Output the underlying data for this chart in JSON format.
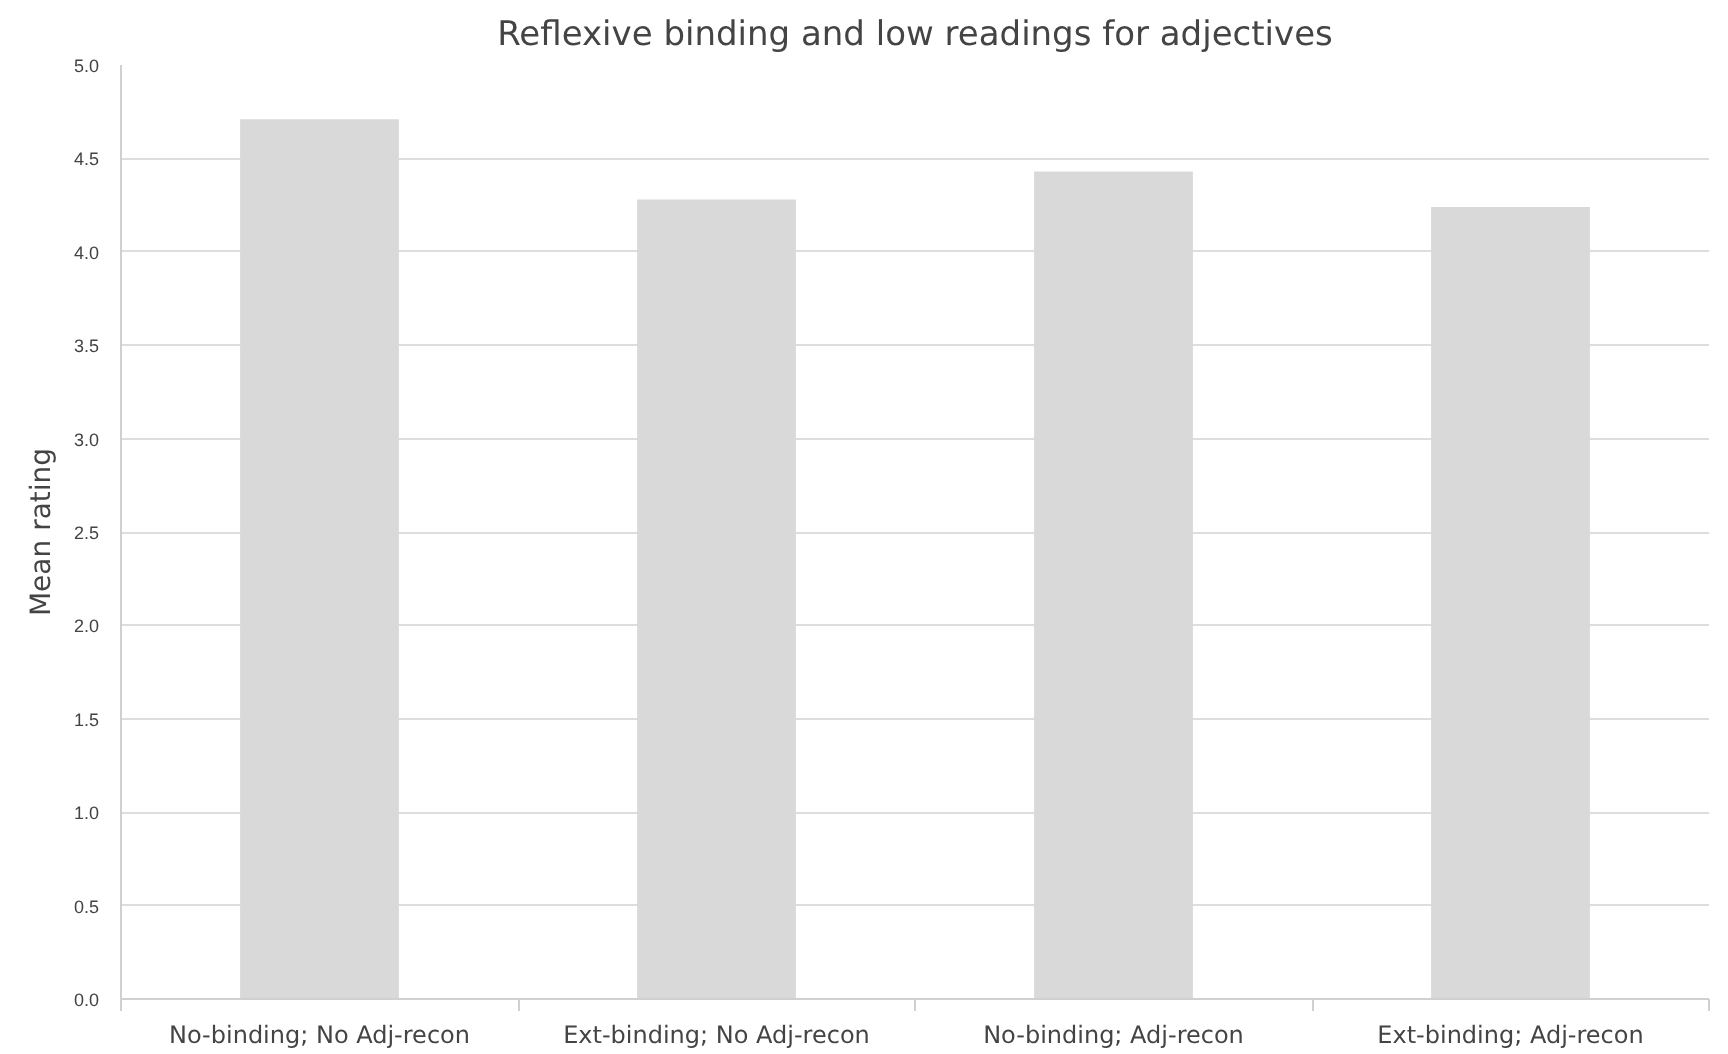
{
  "chart_data": {
    "type": "bar",
    "title": "Reflexive binding and low readings for adjectives",
    "ylabel": "Mean rating",
    "categories": [
      "No-binding; No Adj-recon",
      "Ext-binding; No Adj-recon",
      "No-binding; Adj-recon",
      "Ext-binding; Adj-recon"
    ],
    "values": [
      4.71,
      4.28,
      4.43,
      4.24
    ],
    "color": "#d9d9d9",
    "ylim": [
      0,
      5
    ],
    "yticks": [
      {
        "value": 0,
        "label": "0.0"
      },
      {
        "value": 0.5,
        "label": "0.5"
      },
      {
        "value": 1,
        "label": "1.0"
      },
      {
        "value": 1.5,
        "label": "1.5"
      },
      {
        "value": 2,
        "label": "2.0"
      },
      {
        "value": 2.5,
        "label": "2.5"
      },
      {
        "value": 3,
        "label": "3.0"
      },
      {
        "value": 3.5,
        "label": "3.5"
      },
      {
        "value": 4,
        "label": "4.0"
      },
      {
        "value": 4.5,
        "label": "4.5"
      },
      {
        "value": 5,
        "label": "5.0"
      }
    ],
    "grid": "y",
    "legend": false
  }
}
